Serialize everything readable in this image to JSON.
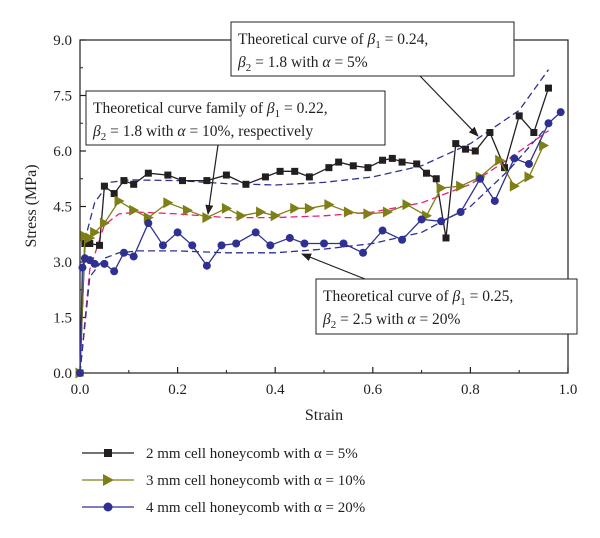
{
  "chart_data": {
    "type": "line",
    "xlabel": "Strain",
    "ylabel": "Stress (MPa)",
    "xlim": [
      0.0,
      1.0
    ],
    "ylim": [
      0.0,
      9.0
    ],
    "x_ticks": [
      "0.0",
      "0.2",
      "0.4",
      "0.6",
      "0.8",
      "1.0"
    ],
    "y_ticks": [
      "0.0",
      "1.5",
      "3.0",
      "4.5",
      "6.0",
      "7.5",
      "9.0"
    ],
    "grid": false,
    "legend_position": "bottom",
    "series": [
      {
        "name": "2 mm cell honeycomb with α = 5%",
        "marker": "square",
        "color": "#231f20",
        "x": [
          0.0,
          0.01,
          0.02,
          0.04,
          0.05,
          0.07,
          0.09,
          0.11,
          0.14,
          0.18,
          0.21,
          0.26,
          0.3,
          0.34,
          0.38,
          0.41,
          0.44,
          0.47,
          0.51,
          0.53,
          0.56,
          0.59,
          0.62,
          0.64,
          0.66,
          0.69,
          0.71,
          0.73,
          0.75,
          0.77,
          0.79,
          0.81,
          0.84,
          0.87,
          0.9,
          0.93,
          0.96
        ],
        "y": [
          0.0,
          3.5,
          3.5,
          3.45,
          5.05,
          4.85,
          5.2,
          5.1,
          5.4,
          5.35,
          5.2,
          5.2,
          5.35,
          5.1,
          5.3,
          5.45,
          5.45,
          5.3,
          5.55,
          5.7,
          5.6,
          5.55,
          5.75,
          5.8,
          5.7,
          5.65,
          5.4,
          5.25,
          3.65,
          6.2,
          6.05,
          6.0,
          6.5,
          5.55,
          6.95,
          6.5,
          7.7
        ]
      },
      {
        "name": "3 mm cell honeycomb with α = 10%",
        "marker": "triangle",
        "color": "#7f7f17",
        "x": [
          0.0,
          0.01,
          0.02,
          0.03,
          0.05,
          0.08,
          0.11,
          0.14,
          0.18,
          0.22,
          0.26,
          0.3,
          0.33,
          0.37,
          0.4,
          0.44,
          0.47,
          0.51,
          0.55,
          0.59,
          0.63,
          0.67,
          0.71,
          0.74,
          0.78,
          0.82,
          0.86,
          0.89,
          0.92,
          0.95
        ],
        "y": [
          0.0,
          3.7,
          3.65,
          3.8,
          4.05,
          4.65,
          4.4,
          4.2,
          4.6,
          4.4,
          4.2,
          4.45,
          4.25,
          4.35,
          4.25,
          4.45,
          4.45,
          4.55,
          4.35,
          4.3,
          4.35,
          4.55,
          4.25,
          5.0,
          5.05,
          5.3,
          5.75,
          5.05,
          5.3,
          6.15
        ]
      },
      {
        "name": "4 mm cell honeycomb with α = 20%",
        "marker": "circle",
        "color": "#2e3192",
        "x": [
          0.0,
          0.005,
          0.01,
          0.02,
          0.03,
          0.05,
          0.07,
          0.09,
          0.11,
          0.14,
          0.17,
          0.2,
          0.23,
          0.26,
          0.29,
          0.32,
          0.36,
          0.39,
          0.43,
          0.46,
          0.5,
          0.54,
          0.58,
          0.62,
          0.66,
          0.7,
          0.74,
          0.78,
          0.82,
          0.85,
          0.89,
          0.92,
          0.96,
          0.985
        ],
        "y": [
          0.0,
          2.85,
          3.1,
          3.05,
          2.95,
          2.95,
          2.75,
          3.25,
          3.15,
          4.05,
          3.45,
          3.8,
          3.45,
          2.9,
          3.45,
          3.5,
          3.8,
          3.45,
          3.65,
          3.5,
          3.5,
          3.5,
          3.25,
          3.85,
          3.6,
          4.15,
          4.1,
          4.35,
          5.25,
          4.65,
          5.8,
          5.65,
          6.75,
          7.05
        ]
      }
    ],
    "theoretical_curves": [
      {
        "color": "#2e3192",
        "dashed": true,
        "x": [
          0.0,
          0.01,
          0.03,
          0.06,
          0.1,
          0.2,
          0.3,
          0.4,
          0.5,
          0.6,
          0.7,
          0.8,
          0.9,
          0.96
        ],
        "y": [
          0.0,
          3.6,
          4.6,
          5.15,
          5.22,
          5.2,
          5.12,
          5.08,
          5.15,
          5.3,
          5.6,
          6.2,
          7.1,
          8.2
        ]
      },
      {
        "color": "#ed1c7a",
        "dashed": true,
        "x": [
          0.0,
          0.02,
          0.05,
          0.08,
          0.12,
          0.2,
          0.3,
          0.4,
          0.5,
          0.6,
          0.7,
          0.8,
          0.88,
          0.96
        ],
        "y": [
          0.0,
          2.8,
          4.0,
          4.3,
          4.35,
          4.3,
          4.2,
          4.2,
          4.25,
          4.35,
          4.6,
          5.1,
          5.8,
          6.55
        ]
      },
      {
        "color": "#2e3192",
        "dashed": true,
        "x": [
          0.0,
          0.02,
          0.05,
          0.08,
          0.12,
          0.2,
          0.3,
          0.4,
          0.5,
          0.6,
          0.7,
          0.8,
          0.88,
          0.96
        ],
        "y": [
          0.0,
          2.6,
          3.1,
          3.25,
          3.3,
          3.3,
          3.25,
          3.25,
          3.35,
          3.5,
          3.8,
          4.5,
          5.5,
          6.7
        ]
      }
    ],
    "annotations": [
      {
        "line1": "Theoretical curve of ",
        "sym1": "β",
        "sub1": "1",
        "val1": " = 0.24,",
        "line2_sym": "β",
        "line2_sub": "2",
        "line2_text": " = 1.8 with ",
        "line2_alpha": "α",
        "line2_val": " = 5%"
      },
      {
        "line1": "Theoretical curve family of ",
        "sym1": "β",
        "sub1": "1",
        "val1": " = 0.22,",
        "line2_sym": "β",
        "line2_sub": "2",
        "line2_text": " = 1.8 with ",
        "line2_alpha": "α",
        "line2_val": " = 10%, respectively"
      },
      {
        "line1": "Theoretical curve of ",
        "sym1": "β",
        "sub1": "1",
        "val1": " = 0.25,",
        "line2_sym": "β",
        "line2_sub": "2",
        "line2_text": " = 2.5 with ",
        "line2_alpha": "α",
        "line2_val": " = 20%"
      }
    ]
  }
}
